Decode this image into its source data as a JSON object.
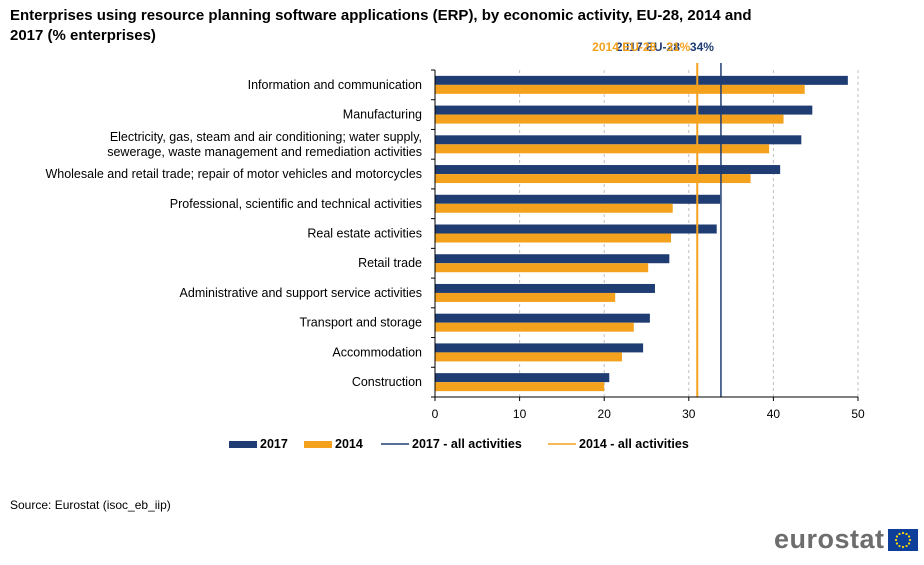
{
  "title": "Enterprises using resource planning software applications (ERP), by economic activity, EU-28, 2014 and 2017 (% enterprises)",
  "source": "Source: Eurostat (isoc_eb_iip)",
  "logo": {
    "text": "eurostat",
    "flag_icon": "eu-flag-icon"
  },
  "colors": {
    "series_2017": "#1f3d73",
    "series_2014": "#f4a21e",
    "grid": "#bfbfbf",
    "axis": "#000000"
  },
  "chart_data": {
    "type": "bar",
    "orientation": "horizontal",
    "title": "Enterprises using resource planning software applications (ERP), by economic activity, EU-28, 2014 and 2017 (% enterprises)",
    "categories": [
      [
        "Information and communication"
      ],
      [
        "Manufacturing"
      ],
      [
        "Electricity, gas, steam and air conditioning; water supply,",
        "sewerage, waste management and remediation activities"
      ],
      [
        "Wholesale and retail trade; repair of motor vehicles and motorcycles"
      ],
      [
        "Professional, scientific and technical activities"
      ],
      [
        "Real estate activities"
      ],
      [
        "Retail trade"
      ],
      [
        "Administrative and support service activities"
      ],
      [
        "Transport and storage"
      ],
      [
        "Accommodation"
      ],
      [
        "Construction"
      ]
    ],
    "series": [
      {
        "name": "2017",
        "color": "#1f3d73",
        "values": [
          48.8,
          44.6,
          43.3,
          40.8,
          33.7,
          33.3,
          27.7,
          26.0,
          25.4,
          24.6,
          20.6
        ]
      },
      {
        "name": "2014",
        "color": "#f4a21e",
        "values": [
          43.7,
          41.2,
          39.5,
          37.3,
          28.1,
          27.9,
          25.2,
          21.3,
          23.5,
          22.1,
          20.0
        ]
      }
    ],
    "reference_lines": [
      {
        "name": "2017 - all activities",
        "label_year": "2017 EU-28",
        "label_value": "34%",
        "value": 33.8,
        "color": "#1f3d73"
      },
      {
        "name": "2014 - all activities",
        "label_year": "2014 EU-28",
        "label_value": "31%",
        "value": 31.0,
        "color": "#f4a21e"
      }
    ],
    "xlim": [
      0,
      50
    ],
    "xticks": [
      0,
      10,
      20,
      30,
      40,
      50
    ],
    "grid": true,
    "legend": {
      "placement": "bottom",
      "items": [
        {
          "label": "2017",
          "kind": "bar",
          "color": "#1f3d73"
        },
        {
          "label": "2014",
          "kind": "bar",
          "color": "#f4a21e"
        },
        {
          "label": "2017 - all activities",
          "kind": "line",
          "color": "#1f3d73"
        },
        {
          "label": "2014 - all activities",
          "kind": "line",
          "color": "#f4a21e"
        }
      ]
    }
  }
}
